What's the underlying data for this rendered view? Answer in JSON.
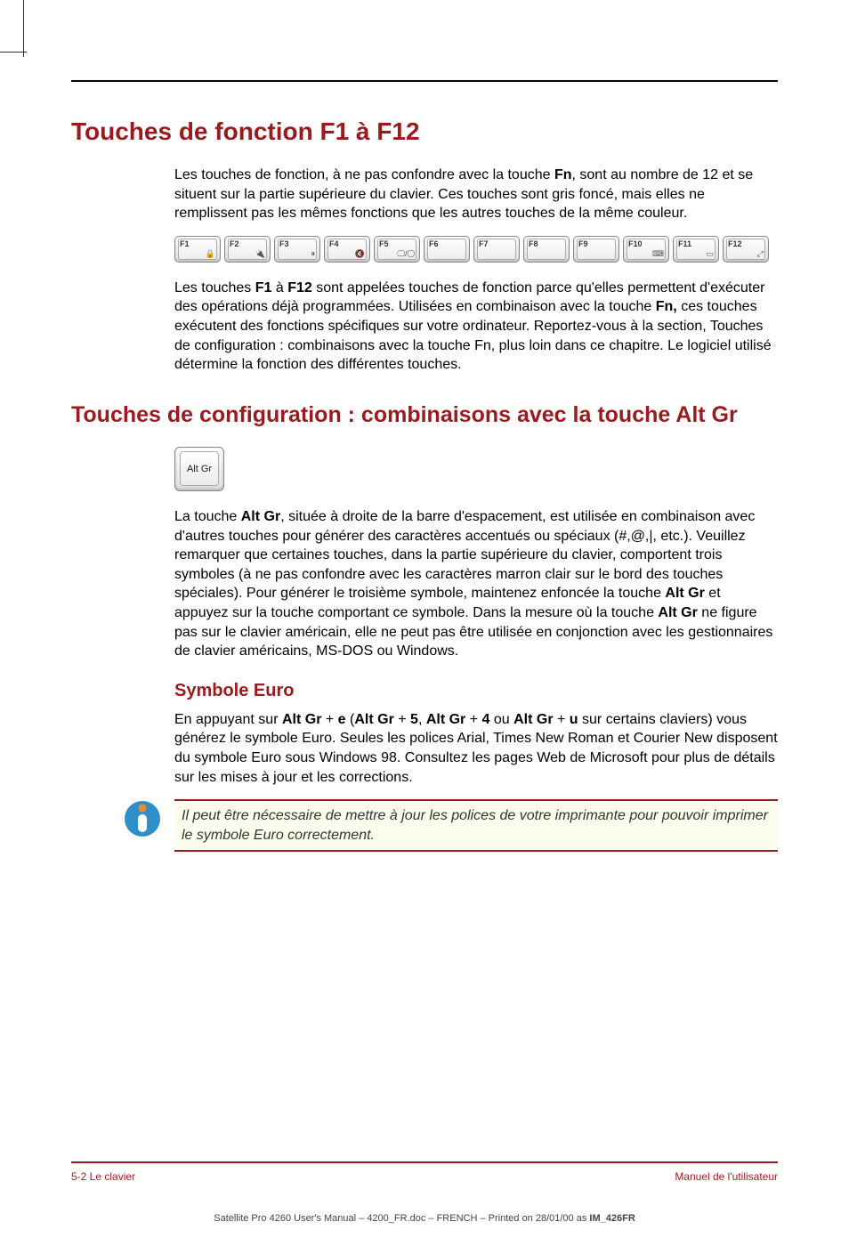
{
  "headings": {
    "h1": "Touches de fonction F1 à F12",
    "h2": "Touches de configuration : combinaisons avec la touche Alt Gr",
    "h3": "Symbole Euro"
  },
  "para1_pre": "Les touches de fonction, à ne pas confondre avec la touche ",
  "para1_fn": "Fn",
  "para1_post": ", sont au nombre de 12 et se situent sur la partie supérieure du clavier. Ces touches sont gris foncé, mais elles ne remplissent pas les mêmes fonctions que les autres touches de la même couleur.",
  "fkeys": [
    {
      "label": "F1",
      "icon": "🔒"
    },
    {
      "label": "F2",
      "icon": "🔌"
    },
    {
      "label": "F3",
      "icon": "⏸"
    },
    {
      "label": "F4",
      "icon": "🔇"
    },
    {
      "label": "F5",
      "icon": "🖵/◯"
    },
    {
      "label": "F6",
      "icon": ""
    },
    {
      "label": "F7",
      "icon": ""
    },
    {
      "label": "F8",
      "icon": ""
    },
    {
      "label": "F9",
      "icon": ""
    },
    {
      "label": "F10",
      "icon": "⌨"
    },
    {
      "label": "F11",
      "icon": "▭"
    },
    {
      "label": "F12",
      "icon": "⤢"
    }
  ],
  "para2_a": "Les touches ",
  "para2_f1": "F1",
  "para2_b": " à ",
  "para2_f12": "F12",
  "para2_c": " sont appelées touches de fonction parce qu'elles permettent d'exécuter des opérations déjà programmées. Utilisées en combinaison avec la touche ",
  "para2_fn": "Fn,",
  "para2_d": " ces touches exécutent des fonctions spécifiques sur votre ordinateur. Reportez-vous à la section, Touches de configuration : combinaisons avec la touche Fn, plus loin dans ce chapitre. Le logiciel utilisé détermine la fonction des différentes touches.",
  "altgr_label": "Alt Gr",
  "para3_a": "La touche ",
  "para3_altgr": "Alt Gr",
  "para3_b": ", située à droite de la barre d'espacement, est utilisée en combinaison avec d'autres touches pour générer des caractères accentués ou spéciaux (#,@,|, etc.). Veuillez remarquer que certaines touches, dans la partie supérieure du clavier, comportent trois symboles (à ne pas confondre avec les caractères marron clair sur le bord des touches spéciales). Pour générer le troisième symbole, maintenez enfoncée la touche ",
  "para3_altgr2": "Alt Gr",
  "para3_c": " et appuyez sur la touche comportant ce symbole. Dans la mesure où la touche ",
  "para3_altgr3": "Alt Gr",
  "para3_d": " ne figure pas sur le clavier américain, elle ne peut pas être utilisée en conjonction avec les gestionnaires de clavier américains, MS-DOS ou Windows.",
  "para4_a": "En appuyant sur ",
  "para4_b1": "Alt Gr",
  "para4_p1": " + ",
  "para4_b2": "e",
  "para4_lp": " (",
  "para4_b3": "Alt Gr",
  "para4_p2": " + ",
  "para4_b4": "5",
  "para4_c1": ", ",
  "para4_b5": "Alt Gr",
  "para4_p3": " + ",
  "para4_b6": "4",
  "para4_c2": " ou ",
  "para4_b7": "Alt Gr",
  "para4_p4": " + ",
  "para4_b8": "u",
  "para4_rp": " sur certains claviers) vous générez le symbole Euro. Seules les polices Arial, Times New Roman et Courier New disposent du symbole Euro sous Windows 98. Consultez les pages Web de Microsoft pour plus de détails sur les mises à jour et les corrections.",
  "note": "Il peut être nécessaire de mettre à jour les polices de votre imprimante pour pouvoir imprimer le symbole Euro correctement.",
  "footer_left": "5-2  Le clavier",
  "footer_right": "Manuel de l'utilisateur",
  "print_a": "Satellite Pro 4260 User's Manual  – 4200_FR.doc – FRENCH – Printed on 28/01/00 as ",
  "print_b": "IM_426FR",
  "colors": {
    "heading": "#9a1b1e",
    "rule": "#9a1b1e",
    "note_bg": "#fdfdee",
    "info_blue": "#2e8fc9",
    "info_orange": "#e98a2e"
  }
}
